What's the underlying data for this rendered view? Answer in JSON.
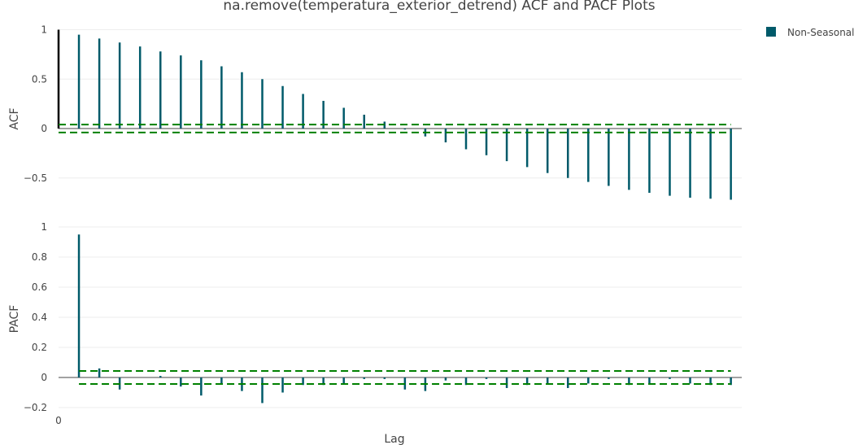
{
  "chart_data": {
    "type": "bar",
    "title": "na.remove(temperatura_exterior_detrend) ACF and PACF Plots",
    "xlabel": "Lag",
    "legend": {
      "label": "Non-Seasonal",
      "color": "#005A6A",
      "placement": "top-right"
    },
    "colors": {
      "bars": "#005A6A",
      "lag0_bar": "#000000",
      "confidence": "#008000",
      "zero_line": "#444444",
      "grid": "#eeeeee"
    },
    "x_tick_labels": [
      "0"
    ],
    "panels": [
      {
        "name": "acf",
        "ylabel": "ACF",
        "ylim": [
          -0.72,
          1.0
        ],
        "yticks": [
          1,
          0.5,
          0,
          -0.5
        ],
        "ytick_labels": [
          "1",
          "0.5",
          "0",
          "−0.5"
        ],
        "confidence": [
          0.04,
          -0.04
        ],
        "lags": [
          0,
          1,
          2,
          3,
          4,
          5,
          6,
          7,
          8,
          9,
          10,
          11,
          12,
          13,
          14,
          15,
          16,
          17,
          18,
          19,
          20,
          21,
          22,
          23,
          24,
          25,
          26,
          27,
          28,
          29,
          30,
          31,
          32,
          33
        ],
        "values": [
          1.0,
          0.95,
          0.91,
          0.87,
          0.83,
          0.78,
          0.74,
          0.69,
          0.63,
          0.57,
          0.5,
          0.43,
          0.35,
          0.28,
          0.21,
          0.14,
          0.07,
          -0.01,
          -0.08,
          -0.14,
          -0.21,
          -0.27,
          -0.33,
          -0.39,
          -0.45,
          -0.5,
          -0.54,
          -0.58,
          -0.62,
          -0.65,
          -0.68,
          -0.7,
          -0.71,
          -0.72
        ]
      },
      {
        "name": "pacf",
        "ylabel": "PACF",
        "ylim": [
          -0.2,
          1.0
        ],
        "yticks": [
          1,
          0.8,
          0.6,
          0.4,
          0.2,
          0,
          -0.2
        ],
        "ytick_labels": [
          "1",
          "0.8",
          "0.6",
          "0.4",
          "0.2",
          "0",
          "−0.2"
        ],
        "confidence": [
          0.043,
          -0.043
        ],
        "lags": [
          1,
          2,
          3,
          4,
          5,
          6,
          7,
          8,
          9,
          10,
          11,
          12,
          13,
          14,
          15,
          16,
          17,
          18,
          19,
          20,
          21,
          22,
          23,
          24,
          25,
          26,
          27,
          28,
          29,
          30,
          31,
          32,
          33
        ],
        "values": [
          0.95,
          0.06,
          -0.08,
          0.0,
          0.01,
          -0.06,
          -0.12,
          -0.04,
          -0.09,
          -0.17,
          -0.1,
          -0.05,
          -0.05,
          -0.04,
          -0.01,
          -0.01,
          -0.08,
          -0.09,
          -0.02,
          -0.05,
          -0.01,
          -0.07,
          -0.05,
          -0.04,
          -0.07,
          -0.04,
          -0.01,
          -0.05,
          -0.04,
          -0.01,
          -0.04,
          -0.05,
          -0.05
        ]
      }
    ]
  }
}
